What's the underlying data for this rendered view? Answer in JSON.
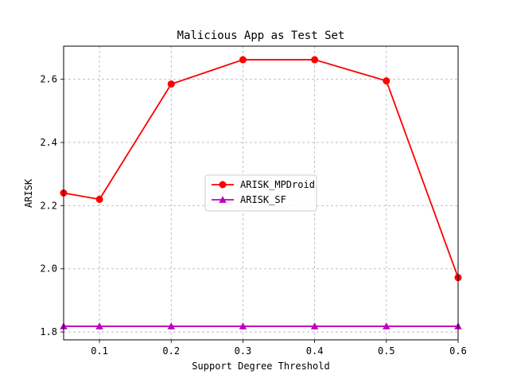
{
  "chart_data": {
    "type": "line",
    "title": "Malicious App as Test Set",
    "xlabel": "Support Degree Threshold",
    "ylabel": "ARISK",
    "x": [
      0.05,
      0.1,
      0.2,
      0.3,
      0.4,
      0.5,
      0.6
    ],
    "xlim": [
      0.05,
      0.6
    ],
    "ylim": [
      1.775,
      2.705
    ],
    "xticks": [
      0.1,
      0.2,
      0.3,
      0.4,
      0.5,
      0.6
    ],
    "xtick_labels": [
      "0.1",
      "0.2",
      "0.3",
      "0.4",
      "0.5",
      "0.6"
    ],
    "yticks": [
      1.8,
      2.0,
      2.2,
      2.4,
      2.6
    ],
    "ytick_labels": [
      "1.8",
      "2.0",
      "2.2",
      "2.4",
      "2.6"
    ],
    "grid": true,
    "legend_position": "center-right",
    "series": [
      {
        "name": "ARISK_MPDroid",
        "color": "#ff0000",
        "marker": "circle",
        "values": [
          2.24,
          2.22,
          2.585,
          2.662,
          2.662,
          2.595,
          1.972
        ]
      },
      {
        "name": "ARISK_SF",
        "color": "#bf00bf",
        "marker": "triangle",
        "values": [
          1.818,
          1.818,
          1.818,
          1.818,
          1.818,
          1.818,
          1.818
        ]
      }
    ]
  }
}
